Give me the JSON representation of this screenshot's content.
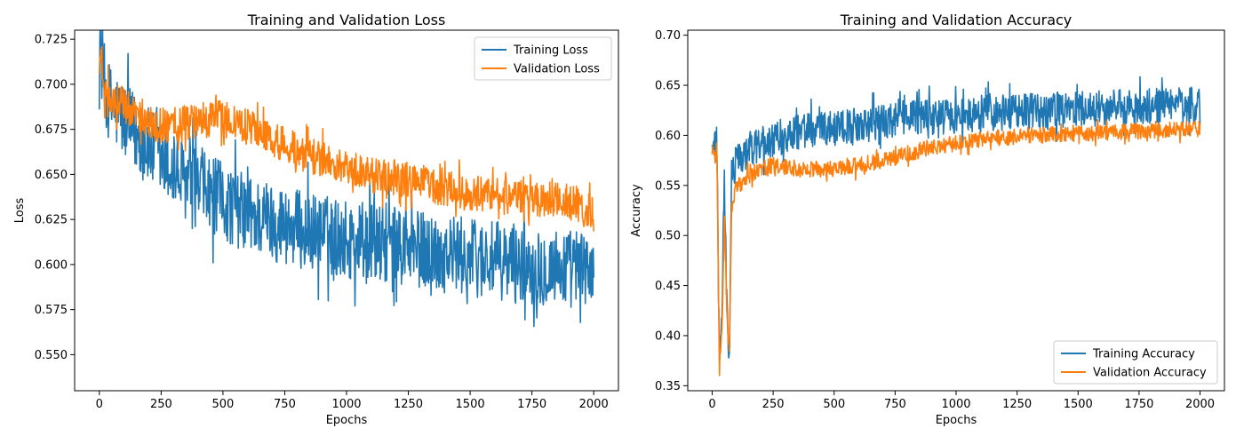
{
  "chart_data": [
    {
      "type": "line",
      "title": "Training and Validation Loss",
      "xlabel": "Epochs",
      "ylabel": "Loss",
      "xlim": [
        -100,
        2100
      ],
      "ylim": [
        0.53,
        0.73
      ],
      "xticks": [
        0,
        250,
        500,
        750,
        1000,
        1250,
        1500,
        1750,
        2000
      ],
      "yticks": [
        0.55,
        0.575,
        0.6,
        0.625,
        0.65,
        0.675,
        0.7,
        0.725
      ],
      "ytick_labels": [
        "0.550",
        "0.575",
        "0.600",
        "0.625",
        "0.650",
        "0.675",
        "0.700",
        "0.725"
      ],
      "legend": "top-right",
      "grid": false,
      "series": [
        {
          "name": "Training Loss",
          "color": "#1f77b4",
          "x": [
            0,
            25,
            50,
            100,
            150,
            200,
            250,
            300,
            400,
            500,
            600,
            700,
            800,
            900,
            1000,
            1100,
            1200,
            1300,
            1400,
            1500,
            1600,
            1700,
            1800,
            1900,
            2000
          ],
          "y": [
            0.724,
            0.695,
            0.688,
            0.68,
            0.672,
            0.665,
            0.658,
            0.651,
            0.642,
            0.635,
            0.628,
            0.624,
            0.62,
            0.617,
            0.614,
            0.612,
            0.61,
            0.608,
            0.606,
            0.604,
            0.602,
            0.6,
            0.599,
            0.598,
            0.597
          ],
          "spread": 0.022
        },
        {
          "name": "Validation Loss",
          "color": "#ff7f0e",
          "x": [
            0,
            25,
            50,
            100,
            150,
            200,
            250,
            300,
            400,
            500,
            600,
            700,
            800,
            900,
            1000,
            1100,
            1200,
            1300,
            1400,
            1500,
            1600,
            1700,
            1800,
            1900,
            2000
          ],
          "y": [
            0.722,
            0.695,
            0.692,
            0.688,
            0.684,
            0.68,
            0.677,
            0.677,
            0.68,
            0.681,
            0.676,
            0.67,
            0.664,
            0.658,
            0.654,
            0.65,
            0.648,
            0.645,
            0.642,
            0.64,
            0.638,
            0.637,
            0.636,
            0.635,
            0.628
          ],
          "spread": 0.01
        }
      ]
    },
    {
      "type": "line",
      "title": "Training and Validation Accuracy",
      "xlabel": "Epochs",
      "ylabel": "Accuracy",
      "xlim": [
        -100,
        2100
      ],
      "ylim": [
        0.345,
        0.705
      ],
      "xticks": [
        0,
        250,
        500,
        750,
        1000,
        1250,
        1500,
        1750,
        2000
      ],
      "yticks": [
        0.35,
        0.4,
        0.45,
        0.5,
        0.55,
        0.6,
        0.65,
        0.7
      ],
      "ytick_labels": [
        "0.35",
        "0.40",
        "0.45",
        "0.50",
        "0.55",
        "0.60",
        "0.65",
        "0.70"
      ],
      "legend": "bottom-right",
      "grid": false,
      "series": [
        {
          "name": "Training Accuracy",
          "color": "#1f77b4",
          "x": [
            0,
            20,
            30,
            40,
            50,
            60,
            70,
            80,
            100,
            150,
            200,
            250,
            300,
            400,
            500,
            600,
            700,
            800,
            900,
            1000,
            1100,
            1200,
            1300,
            1400,
            1500,
            1600,
            1700,
            1800,
            1900,
            2000
          ],
          "y": [
            0.594,
            0.59,
            0.36,
            0.42,
            0.56,
            0.45,
            0.37,
            0.56,
            0.575,
            0.585,
            0.592,
            0.596,
            0.6,
            0.604,
            0.607,
            0.61,
            0.613,
            0.616,
            0.618,
            0.62,
            0.622,
            0.623,
            0.624,
            0.625,
            0.626,
            0.627,
            0.628,
            0.629,
            0.63,
            0.63
          ],
          "spread": 0.018
        },
        {
          "name": "Validation Accuracy",
          "color": "#ff7f0e",
          "x": [
            0,
            20,
            30,
            40,
            50,
            60,
            70,
            80,
            100,
            150,
            200,
            250,
            300,
            400,
            500,
            600,
            700,
            800,
            900,
            1000,
            1100,
            1200,
            1300,
            1400,
            1500,
            1600,
            1700,
            1800,
            1900,
            2000
          ],
          "y": [
            0.582,
            0.578,
            0.37,
            0.4,
            0.52,
            0.43,
            0.38,
            0.53,
            0.548,
            0.56,
            0.567,
            0.57,
            0.568,
            0.566,
            0.567,
            0.57,
            0.575,
            0.582,
            0.588,
            0.592,
            0.596,
            0.598,
            0.6,
            0.601,
            0.602,
            0.603,
            0.604,
            0.605,
            0.606,
            0.607
          ],
          "spread": 0.008
        }
      ]
    }
  ]
}
